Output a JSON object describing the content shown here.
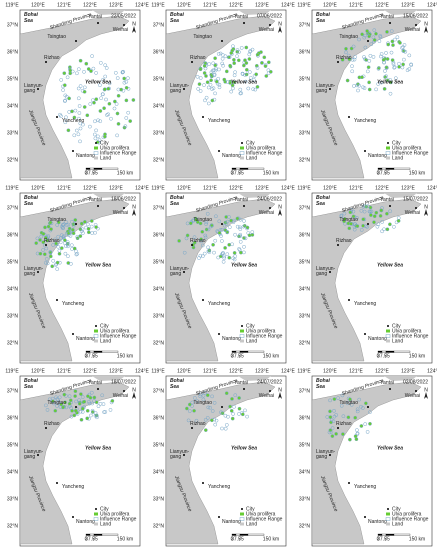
{
  "map": {
    "lon_ticks": [
      "119°E",
      "120°E",
      "121°E",
      "122°E",
      "123°E",
      "124°E"
    ],
    "lat_ticks": [
      "37°N",
      "36°N",
      "35°N",
      "34°N",
      "33°N",
      "32°N"
    ],
    "regions": {
      "bohai": [
        "Bohai",
        "Sea"
      ],
      "shandong": "Shandong Province",
      "jiangsu": "Jiangsu Province",
      "yellow": "Yellow Sea"
    },
    "cities": [
      {
        "lines": [
          "Yantai"
        ]
      },
      {
        "lines": [
          "Weihai"
        ]
      },
      {
        "lines": [
          "Tsingtao"
        ]
      },
      {
        "lines": [
          "Rizhao"
        ]
      },
      {
        "lines": [
          "Lianyun-",
          "gang"
        ]
      },
      {
        "lines": [
          "Yancheng"
        ]
      },
      {
        "lines": [
          "Nantong"
        ]
      }
    ],
    "legend": [
      "City",
      "Ulva prolifera",
      "Influence Range",
      "Land"
    ],
    "scale": [
      "0",
      "37.5",
      "75",
      "150 km"
    ],
    "north": "N"
  },
  "panels": [
    {
      "date": "22/05/2022"
    },
    {
      "date": "07/06/2022"
    },
    {
      "date": "15/06/2022"
    },
    {
      "date": "18/06/2022"
    },
    {
      "date": "24/06/2022"
    },
    {
      "date": "15/07/2022"
    },
    {
      "date": "18/07/2022"
    },
    {
      "date": "24/07/2022"
    },
    {
      "date": "02/08/2022"
    }
  ]
}
